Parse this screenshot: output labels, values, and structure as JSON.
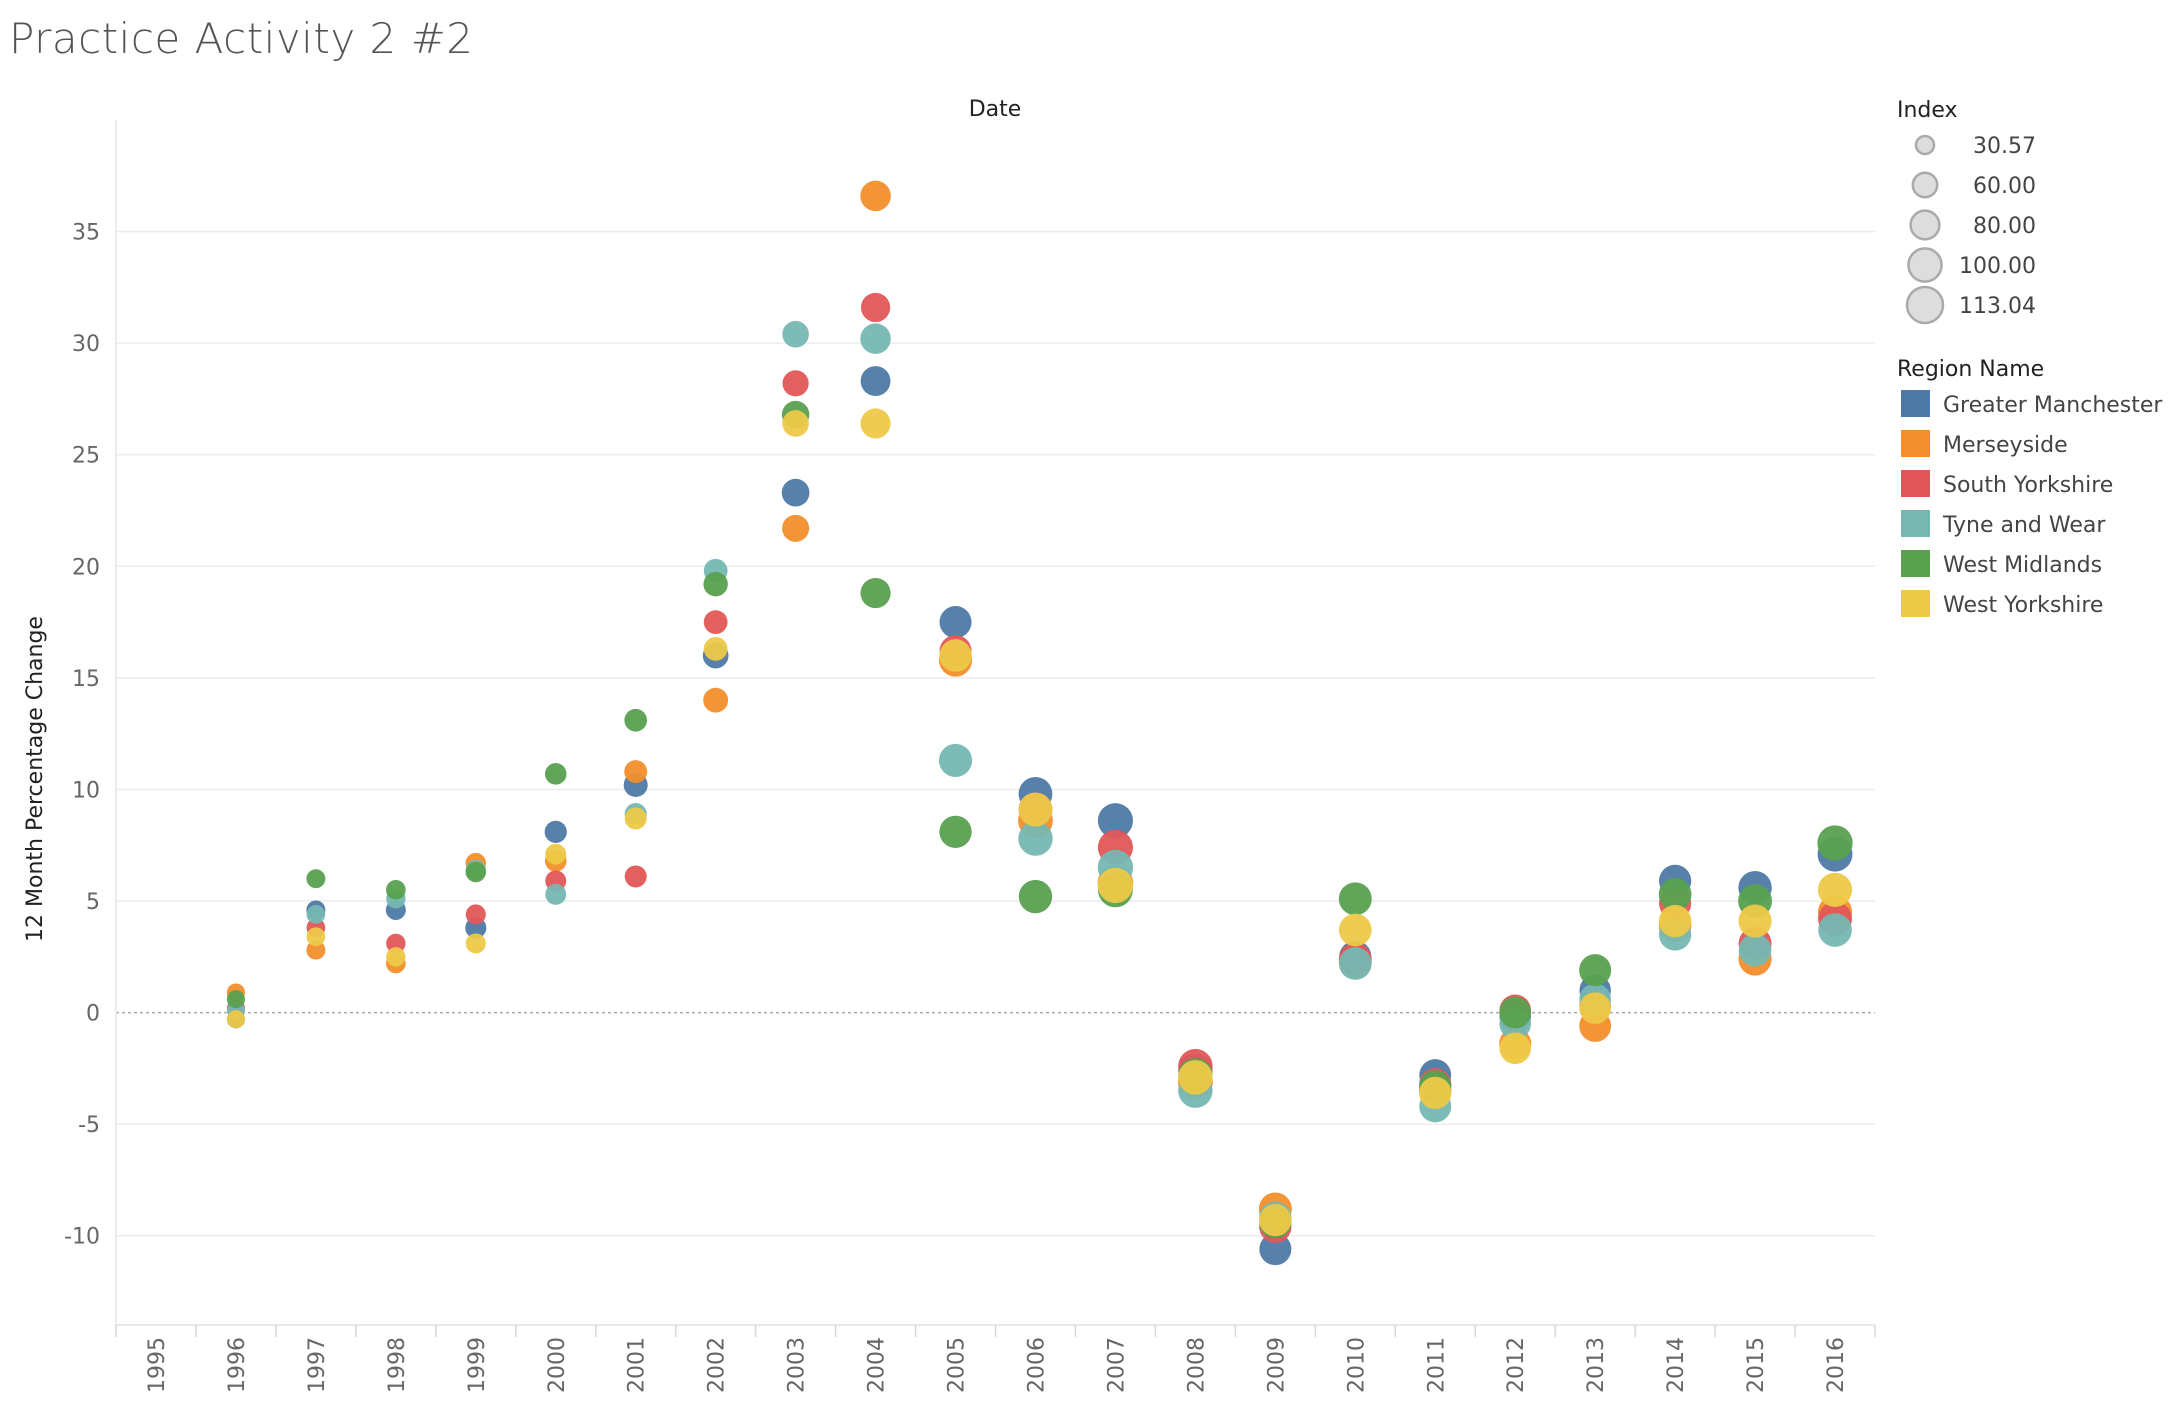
{
  "title": "Practice Activity 2 #2",
  "chart_data": {
    "type": "scatter",
    "title": "Practice Activity 2 #2",
    "xlabel": "Date",
    "ylabel": "12 Month Percentage Change",
    "x_categories": [
      "1995",
      "1996",
      "1997",
      "1998",
      "1999",
      "2000",
      "2001",
      "2002",
      "2003",
      "2004",
      "2005",
      "2006",
      "2007",
      "2008",
      "2009",
      "2010",
      "2011",
      "2012",
      "2013",
      "2014",
      "2015",
      "2016"
    ],
    "y_ticks": [
      35,
      30,
      25,
      20,
      15,
      10,
      5,
      0,
      -5,
      -10
    ],
    "y_tick_labels": [
      "35",
      "30",
      "25",
      "20",
      "15",
      "10",
      "5",
      "0",
      "-5",
      "-10"
    ],
    "ylim": [
      -14,
      40
    ],
    "grid": true,
    "zero_line": "dashed",
    "size_legend": {
      "title": "Index",
      "entries": [
        {
          "label": "30.57",
          "value": 30.57
        },
        {
          "label": "60.00",
          "value": 60
        },
        {
          "label": "80.00",
          "value": 80
        },
        {
          "label": "100.00",
          "value": 100
        },
        {
          "label": "113.04",
          "value": 113.04
        }
      ]
    },
    "color_legend": {
      "title": "Region Name",
      "placement": "right"
    },
    "series": [
      {
        "name": "Greater Manchester",
        "color": "#4e79a7",
        "x": [
          "1996",
          "1997",
          "1998",
          "1999",
          "2000",
          "2001",
          "2002",
          "2003",
          "2004",
          "2005",
          "2006",
          "2007",
          "2008",
          "2009",
          "2010",
          "2011",
          "2012",
          "2013",
          "2014",
          "2015",
          "2016"
        ],
        "y": [
          -0.3,
          4.6,
          4.6,
          3.8,
          8.1,
          10.2,
          16.0,
          23.3,
          28.3,
          17.5,
          9.8,
          8.6,
          -2.6,
          -10.6,
          2.5,
          -2.8,
          -0.2,
          1.0,
          5.9,
          5.6,
          7.1
        ],
        "index": [
          31,
          35,
          40,
          45,
          50,
          58,
          66,
          75,
          85,
          95,
          103,
          109,
          105,
          95,
          96,
          94,
          92,
          92,
          96,
          101,
          108
        ]
      },
      {
        "name": "Merseyside",
        "color": "#f28e2b",
        "x": [
          "1996",
          "1997",
          "1998",
          "1999",
          "2000",
          "2001",
          "2002",
          "2003",
          "2004",
          "2005",
          "2006",
          "2007",
          "2008",
          "2009",
          "2010",
          "2011",
          "2012",
          "2013",
          "2014",
          "2015",
          "2016"
        ],
        "y": [
          0.9,
          2.8,
          2.2,
          6.7,
          6.8,
          10.8,
          14.0,
          21.7,
          36.6,
          15.8,
          8.6,
          5.8,
          -3.1,
          -8.8,
          2.3,
          -3.5,
          -1.4,
          -0.6,
          3.9,
          2.4,
          4.5
        ],
        "index": [
          31,
          35,
          38,
          42,
          47,
          53,
          62,
          72,
          88,
          100,
          107,
          112,
          108,
          99,
          100,
          97,
          95,
          94,
          97,
          100,
          104
        ]
      },
      {
        "name": "South Yorkshire",
        "color": "#e15759",
        "x": [
          "1996",
          "1997",
          "1998",
          "1999",
          "2000",
          "2001",
          "2002",
          "2003",
          "2004",
          "2005",
          "2006",
          "2007",
          "2008",
          "2009",
          "2010",
          "2011",
          "2012",
          "2013",
          "2014",
          "2015",
          "2016"
        ],
        "y": [
          0.2,
          3.8,
          3.1,
          4.4,
          5.9,
          6.1,
          17.5,
          28.2,
          31.6,
          16.2,
          9.1,
          7.4,
          -2.4,
          -9.6,
          2.4,
          -3.2,
          0.1,
          0.3,
          4.9,
          3.1,
          4.2
        ],
        "index": [
          31,
          34,
          37,
          40,
          44,
          49,
          57,
          68,
          82,
          95,
          103,
          109,
          106,
          96,
          97,
          95,
          93,
          93,
          96,
          99,
          104
        ]
      },
      {
        "name": "Tyne and Wear",
        "color": "#76b7b2",
        "x": [
          "1996",
          "1997",
          "1998",
          "1999",
          "2000",
          "2001",
          "2002",
          "2003",
          "2004",
          "2005",
          "2006",
          "2007",
          "2008",
          "2009",
          "2010",
          "2011",
          "2012",
          "2013",
          "2014",
          "2015",
          "2016"
        ],
        "y": [
          0.1,
          4.4,
          5.1,
          6.4,
          5.3,
          8.9,
          19.8,
          30.4,
          30.2,
          11.3,
          7.8,
          6.5,
          -3.5,
          -9.2,
          2.2,
          -4.2,
          -0.5,
          0.6,
          3.5,
          2.8,
          3.7
        ],
        "index": [
          31,
          34,
          37,
          40,
          44,
          49,
          57,
          70,
          88,
          100,
          106,
          110,
          106,
          97,
          98,
          95,
          93,
          93,
          96,
          98,
          102
        ]
      },
      {
        "name": "West Midlands",
        "color": "#59a14f",
        "x": [
          "1996",
          "1997",
          "1998",
          "1999",
          "2000",
          "2001",
          "2002",
          "2003",
          "2004",
          "2005",
          "2006",
          "2007",
          "2008",
          "2009",
          "2010",
          "2011",
          "2012",
          "2013",
          "2014",
          "2015",
          "2016"
        ],
        "y": [
          0.6,
          6.0,
          5.5,
          6.3,
          10.7,
          13.1,
          19.2,
          26.8,
          18.8,
          8.1,
          5.2,
          5.5,
          -2.8,
          -9.4,
          5.1,
          -3.3,
          0.0,
          1.9,
          5.3,
          5.0,
          7.6
        ],
        "index": [
          31,
          35,
          38,
          42,
          47,
          52,
          60,
          74,
          86,
          96,
          101,
          108,
          105,
          95,
          99,
          96,
          94,
          95,
          98,
          103,
          110
        ]
      },
      {
        "name": "West Yorkshire",
        "color": "#edc948",
        "x": [
          "1996",
          "1997",
          "1998",
          "1999",
          "2000",
          "2001",
          "2002",
          "2003",
          "2004",
          "2005",
          "2006",
          "2007",
          "2008",
          "2009",
          "2010",
          "2011",
          "2012",
          "2013",
          "2014",
          "2015",
          "2016"
        ],
        "y": [
          -0.3,
          3.4,
          2.5,
          3.1,
          7.1,
          8.7,
          16.3,
          26.4,
          26.4,
          16.0,
          9.1,
          5.7,
          -2.9,
          -9.3,
          3.7,
          -3.6,
          -1.6,
          0.2,
          4.1,
          4.1,
          5.5
        ],
        "index": [
          31,
          34,
          37,
          40,
          44,
          49,
          57,
          70,
          86,
          97,
          104,
          110,
          106,
          96,
          98,
          96,
          93,
          93,
          97,
          100,
          105
        ]
      }
    ]
  }
}
